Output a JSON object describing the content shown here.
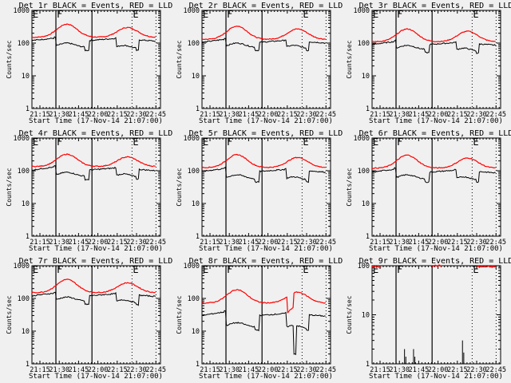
{
  "chart_data": {
    "type": "line",
    "layout": "3x3 grid",
    "shared": {
      "xlabel": "Start Time (17-Nov-14 21:07:00)",
      "ylabel": "Counts/sec",
      "x_range_minutes_after_2100": [
        8.8,
        108.6
      ],
      "x_ticks": [
        "21:15",
        "21:30",
        "21:45",
        "22:00",
        "22:15",
        "22:30",
        "22:45"
      ],
      "x_tick_minutes": [
        15,
        30,
        45,
        60,
        75,
        90,
        105
      ],
      "y_scale": "log",
      "series_colors": {
        "events": "#000000",
        "lld": "#ff0000"
      },
      "legend": "BLACK = Events, RED = LLD",
      "markers": [
        {
          "label": "E",
          "minute": 8.8,
          "style": "none"
        },
        {
          "label": "F",
          "minute": 27.4,
          "style": "solid"
        },
        {
          "label": "",
          "minute": 55.4,
          "style": "solid"
        },
        {
          "label": "E",
          "minute": 86.5,
          "style": "dotted"
        },
        {
          "label": "",
          "minute": 105.1,
          "style": "dotted"
        }
      ]
    },
    "panels": [
      {
        "title": "Det 1r BLACK = Events, RED = LLD",
        "ylim": [
          1,
          1000
        ],
        "y_ticks": [
          "1",
          "10",
          "100",
          "1000"
        ],
        "lld": {
          "base": 150,
          "peak1": 380,
          "peak2": 300
        },
        "events": {
          "base": 120,
          "dip1": 100,
          "dip2": 85,
          "spike": 150
        }
      },
      {
        "title": "Det 2r BLACK = Events, RED = LLD",
        "ylim": [
          1,
          1000
        ],
        "y_ticks": [
          "1",
          "10",
          "100",
          "1000"
        ],
        "lld": {
          "base": 130,
          "peak1": 330,
          "peak2": 270
        },
        "events": {
          "base": 105,
          "dip1": 100,
          "dip2": 85,
          "spike": 140
        }
      },
      {
        "title": "Det 3r BLACK = Events, RED = LLD",
        "ylim": [
          1,
          1000
        ],
        "y_ticks": [
          "1",
          "10",
          "100",
          "1000"
        ],
        "lld": {
          "base": 110,
          "peak1": 270,
          "peak2": 230
        },
        "events": {
          "base": 90,
          "dip1": 85,
          "dip2": 70,
          "spike": 120
        }
      },
      {
        "title": "Det 4r BLACK = Events, RED = LLD",
        "ylim": [
          1,
          1000
        ],
        "y_ticks": [
          "1",
          "10",
          "100",
          "1000"
        ],
        "lld": {
          "base": 135,
          "peak1": 320,
          "peak2": 265
        },
        "events": {
          "base": 105,
          "dip1": 90,
          "dip2": 80,
          "spike": 140
        }
      },
      {
        "title": "Det 5r BLACK = Events, RED = LLD",
        "ylim": [
          1,
          1000
        ],
        "y_ticks": [
          "1",
          "10",
          "100",
          "1000"
        ],
        "lld": {
          "base": 125,
          "peak1": 310,
          "peak2": 255
        },
        "events": {
          "base": 95,
          "dip1": 75,
          "dip2": 65,
          "spike": 125
        }
      },
      {
        "title": "Det 6r BLACK = Events, RED = LLD",
        "ylim": [
          1,
          1000
        ],
        "y_ticks": [
          "1",
          "10",
          "100",
          "1000"
        ],
        "lld": {
          "base": 120,
          "peak1": 300,
          "peak2": 245
        },
        "events": {
          "base": 90,
          "dip1": 75,
          "dip2": 65,
          "spike": 120
        }
      },
      {
        "title": "Det 7r BLACK = Events, RED = LLD",
        "ylim": [
          1,
          1000
        ],
        "y_ticks": [
          "1",
          "10",
          "100",
          "1000"
        ],
        "lld": {
          "base": 150,
          "peak1": 380,
          "peak2": 300
        },
        "events": {
          "base": 120,
          "dip1": 110,
          "dip2": 90,
          "spike": 155
        }
      },
      {
        "title": "Det 8r BLACK = Events, RED = LLD",
        "ylim": [
          1,
          1000
        ],
        "y_ticks": [
          "1",
          "10",
          "100",
          "1000"
        ],
        "lld": {
          "base": 72,
          "peak1": 185,
          "peak2": 155,
          "drop": 35
        },
        "events": {
          "base": 30,
          "dip1": 18,
          "dip2": 15,
          "spike": 42,
          "drop": 2
        }
      },
      {
        "title": "Det 9r BLACK = Events, RED = LLD",
        "ylim": [
          1,
          100
        ],
        "y_ticks": [
          "1",
          "10",
          "100"
        ],
        "lld": {
          "segments": [
            [
              8.8,
              16,
              95
            ],
            [
              55,
              63,
              100
            ],
            [
              90,
              105,
              95
            ]
          ]
        },
        "events": {
          "spikes": [
            [
              34,
              2
            ],
            [
              35,
              1.4
            ],
            [
              41,
              2
            ],
            [
              42,
              1.4
            ],
            [
              79,
              3
            ],
            [
              80,
              1.7
            ]
          ]
        }
      }
    ]
  }
}
